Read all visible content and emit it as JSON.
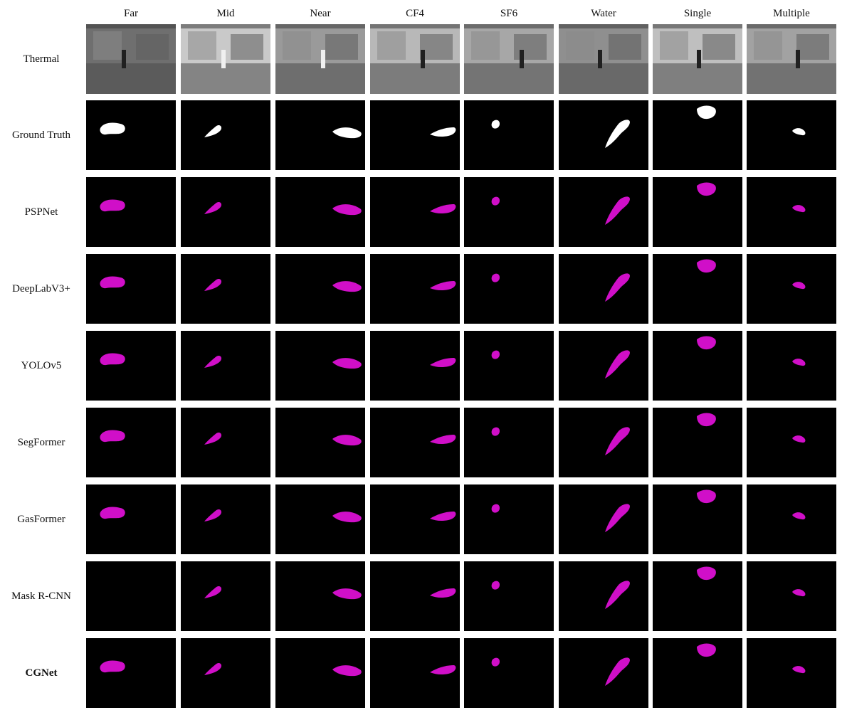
{
  "figure": {
    "columns": [
      "Far",
      "Mid",
      "Near",
      "CF4",
      "SF6",
      "Water",
      "Single",
      "Multiple"
    ],
    "rows": [
      {
        "label": "Thermal",
        "bold": false
      },
      {
        "label": "Ground Truth",
        "bold": false
      },
      {
        "label": "PSPNet",
        "bold": false
      },
      {
        "label": "DeepLabV3+",
        "bold": false
      },
      {
        "label": "YOLOv5",
        "bold": false
      },
      {
        "label": "SegFormer",
        "bold": false
      },
      {
        "label": "GasFormer",
        "bold": false
      },
      {
        "label": "Mask R-CNN",
        "bold": false
      },
      {
        "label": "CGNet",
        "bold": true
      }
    ],
    "colors": {
      "mask_background": "#000000",
      "ground_truth_mask": "#ffffff",
      "prediction_mask": "#d00fc8"
    }
  }
}
